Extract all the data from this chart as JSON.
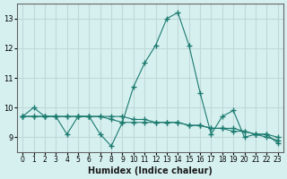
{
  "xlabel": "Humidex (Indice chaleur)",
  "ylabel": "",
  "background_color": "#d6f0f0",
  "grid_color": "#c0d8d8",
  "line_color": "#1a7a6e",
  "x_values": [
    0,
    1,
    2,
    3,
    4,
    5,
    6,
    7,
    8,
    9,
    10,
    11,
    12,
    13,
    14,
    15,
    16,
    17,
    18,
    19,
    20,
    21,
    22,
    23
  ],
  "series": [
    [
      9.7,
      10.0,
      9.7,
      9.7,
      9.1,
      9.7,
      9.7,
      9.1,
      8.7,
      9.5,
      10.7,
      11.5,
      12.1,
      13.0,
      13.2,
      12.1,
      10.5,
      9.1,
      9.7,
      9.9,
      9.0,
      9.1,
      9.1,
      8.8
    ],
    [
      9.7,
      9.7,
      9.7,
      9.7,
      9.7,
      9.7,
      9.7,
      9.7,
      9.7,
      9.7,
      9.6,
      9.6,
      9.5,
      9.5,
      9.5,
      9.4,
      9.4,
      9.3,
      9.3,
      9.2,
      9.2,
      9.1,
      9.1,
      9.0
    ],
    [
      9.7,
      9.7,
      9.7,
      9.7,
      9.7,
      9.7,
      9.7,
      9.7,
      9.6,
      9.5,
      9.5,
      9.5,
      9.5,
      9.5,
      9.5,
      9.4,
      9.4,
      9.3,
      9.3,
      9.3,
      9.2,
      9.1,
      9.0,
      8.9
    ]
  ],
  "ylim": [
    8.5,
    13.5
  ],
  "yticks": [
    9,
    10,
    11,
    12,
    13
  ],
  "xticks": [
    0,
    1,
    2,
    3,
    4,
    5,
    6,
    7,
    8,
    9,
    10,
    11,
    12,
    13,
    14,
    15,
    16,
    17,
    18,
    19,
    20,
    21,
    22,
    23
  ]
}
